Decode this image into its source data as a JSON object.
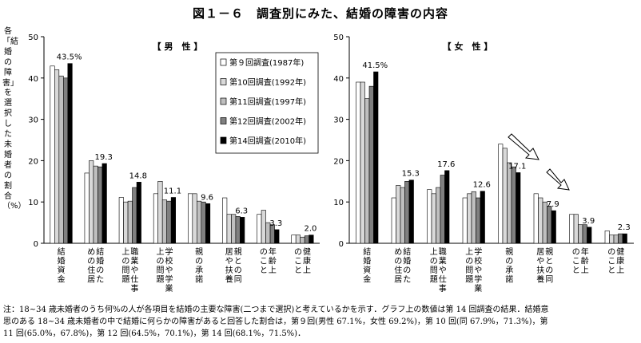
{
  "title": "図１－６　調査別にみた、結婚の障害の内容",
  "ylabel": "各「結婚の障害」を選択した未婚者の割合（%）",
  "legend": [
    {
      "name": "第９回調査(1987年)",
      "color": "#ffffff"
    },
    {
      "name": "第10回調査(1992年)",
      "color": "#d9d9d9"
    },
    {
      "name": "第11回調査(1997年)",
      "color": "#bfbfbf"
    },
    {
      "name": "第12回調査(2002年)",
      "color": "#808080"
    },
    {
      "name": "第14回調査(2010年)",
      "color": "#000000"
    }
  ],
  "note_lines": [
    "注：18~34 歳未婚者のうち何%の人が各項目を結婚の主要な障害(二つまで選択)と考えているかを示す．グラフ上の数値は第 14 回調査の結果．結婚意",
    "思のある 18~34 歳未婚者の中で結婚に何らかの障害があると回答した割合は，第９回(男性 67.1%，女性 69.2%)，第 10 回(同 67.9%，71.3%)，第",
    "11 回(65.0%，67.8%)，第 12 回(64.5%，70.1%)，第 14 回(68.1%，71.5%)．"
  ],
  "chart_data": [
    {
      "type": "bar",
      "panel_title": "【 男　性 】",
      "ylim": [
        0,
        50
      ],
      "yticks": [
        0,
        10,
        20,
        30,
        40,
        50
      ],
      "categories": [
        "結婚資金",
        "結婚のための住居",
        "職業や仕事上の問題",
        "学校や学業上の問題",
        "親の承諾",
        "親との同居や扶養",
        "年齢上のこと",
        "健康上のこと"
      ],
      "series": [
        {
          "name": "第９回調査(1987年)",
          "values": [
            42.9,
            17.0,
            11.1,
            12.0,
            12.0,
            11.0,
            7.0,
            2.0
          ]
        },
        {
          "name": "第10回調査(1992年)",
          "values": [
            42.0,
            20.0,
            10.0,
            15.0,
            12.0,
            7.0,
            8.0,
            2.0
          ]
        },
        {
          "name": "第11回調査(1997年)",
          "values": [
            40.5,
            18.7,
            10.2,
            10.5,
            10.2,
            7.0,
            5.0,
            1.5
          ]
        },
        {
          "name": "第12回調査(2002年)",
          "values": [
            40.0,
            18.5,
            13.5,
            10.2,
            10.0,
            6.5,
            4.5,
            1.8
          ]
        },
        {
          "name": "第14回調査(2010年)",
          "values": [
            43.5,
            19.3,
            14.8,
            11.1,
            9.6,
            6.3,
            3.3,
            2.0
          ]
        }
      ],
      "labels": [
        "43.5%",
        "19.3",
        "14.8",
        "11.1",
        "9.6",
        "6.3",
        "3.3",
        "2.0"
      ]
    },
    {
      "type": "bar",
      "panel_title": "【 女　性 】",
      "ylim": [
        0,
        50
      ],
      "yticks": [
        0,
        10,
        20,
        30,
        40,
        50
      ],
      "categories": [
        "結婚資金",
        "結婚のための住居",
        "職業や仕事上の問題",
        "学校や学業上の問題",
        "親の承諾",
        "親との同居や扶養",
        "年齢上のこと",
        "健康上のこと"
      ],
      "series": [
        {
          "name": "第９回調査(1987年)",
          "values": [
            39.0,
            11.0,
            13.0,
            11.0,
            24.0,
            12.0,
            7.0,
            3.0
          ]
        },
        {
          "name": "第10回調査(1992年)",
          "values": [
            39.0,
            14.0,
            12.0,
            12.0,
            23.0,
            11.0,
            7.0,
            2.0
          ]
        },
        {
          "name": "第11回調査(1997年)",
          "values": [
            35.0,
            13.5,
            13.5,
            12.5,
            19.5,
            10.0,
            4.5,
            2.0
          ]
        },
        {
          "name": "第12回調査(2002年)",
          "values": [
            38.0,
            15.0,
            16.5,
            11.0,
            18.5,
            9.0,
            4.5,
            2.3
          ]
        },
        {
          "name": "第14回調査(2010年)",
          "values": [
            41.5,
            15.3,
            17.6,
            12.6,
            17.1,
            7.9,
            3.9,
            2.3
          ]
        }
      ],
      "labels": [
        "41.5%",
        "15.3",
        "17.6",
        "12.6",
        "17.1",
        "7.9",
        "3.9",
        "2.3"
      ]
    }
  ]
}
